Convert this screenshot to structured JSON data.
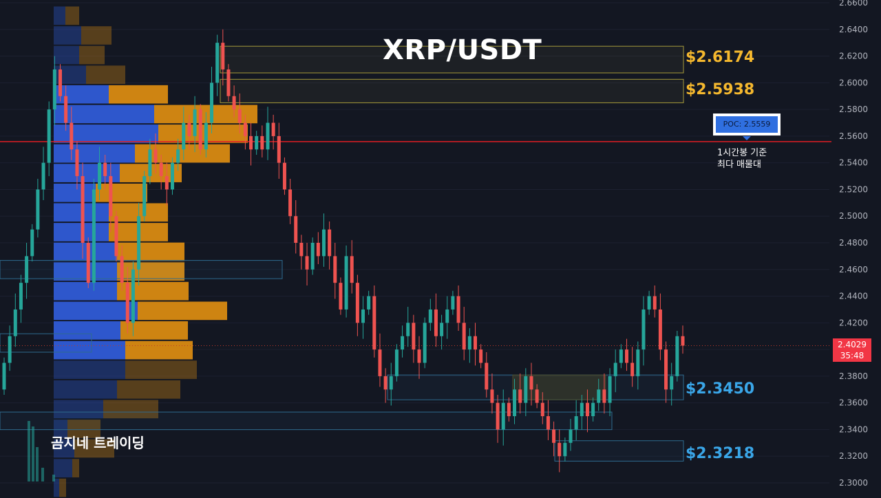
{
  "title": "XRP/USDT",
  "watermark": "곰지네 트레이딩",
  "poc": {
    "label": "POC: 2.5559",
    "value": 2.5559,
    "note_line1": "1시간봉 기준",
    "note_line2": "최다 매물대"
  },
  "current_price": {
    "value": 2.4029,
    "label": "2.4029",
    "countdown": "35:48"
  },
  "levels": [
    {
      "label": "$2.6174",
      "value": 2.6174,
      "color": "#f5b82e"
    },
    {
      "label": "$2.5938",
      "value": 2.5938,
      "color": "#f5b82e"
    },
    {
      "label": "$2.3450",
      "value": 2.345,
      "color": "#3aa6e8"
    },
    {
      "label": "$2.3218",
      "value": 2.3218,
      "color": "#3aa6e8"
    }
  ],
  "colors": {
    "background": "#131722",
    "up": "#26a69a",
    "down": "#ef5350",
    "vp_buy": "#2f5bd6",
    "vp_sell": "#d88a12",
    "poc_line": "#e31e24",
    "axis_text": "#b2b5be"
  },
  "chart_data": {
    "type": "candlestick",
    "title": "XRP/USDT",
    "timeframe_note": "1시간봉 기준",
    "y_axis": {
      "range": [
        2.295,
        2.66
      ],
      "ticks": [
        "2.6600",
        "2.6400",
        "2.6200",
        "2.6000",
        "2.5800",
        "2.5600",
        "2.5400",
        "2.5200",
        "2.5000",
        "2.4800",
        "2.4600",
        "2.4400",
        "2.4200",
        "2.4000",
        "2.3800",
        "2.3600",
        "2.3400",
        "2.3200",
        "2.3000"
      ]
    },
    "close_series": [
      2.39,
      2.41,
      2.43,
      2.45,
      2.47,
      2.49,
      2.52,
      2.54,
      2.58,
      2.61,
      2.59,
      2.57,
      2.55,
      2.53,
      2.48,
      2.45,
      2.52,
      2.54,
      2.53,
      2.5,
      2.47,
      2.45,
      2.42,
      2.46,
      2.5,
      2.53,
      2.55,
      2.54,
      2.53,
      2.52,
      2.54,
      2.55,
      2.57,
      2.56,
      2.58,
      2.55,
      2.57,
      2.6,
      2.63,
      2.61,
      2.59,
      2.58,
      2.57,
      2.56,
      2.55,
      2.56,
      2.55,
      2.57,
      2.56,
      2.54,
      2.52,
      2.5,
      2.48,
      2.47,
      2.46,
      2.48,
      2.47,
      2.49,
      2.47,
      2.45,
      2.43,
      2.47,
      2.45,
      2.42,
      2.43,
      2.44,
      2.4,
      2.38,
      2.37,
      2.38,
      2.4,
      2.41,
      2.42,
      2.4,
      2.39,
      2.42,
      2.43,
      2.41,
      2.42,
      2.43,
      2.44,
      2.42,
      2.4,
      2.41,
      2.4,
      2.39,
      2.37,
      2.36,
      2.34,
      2.36,
      2.35,
      2.37,
      2.36,
      2.38,
      2.37,
      2.36,
      2.35,
      2.34,
      2.33,
      2.32,
      2.33,
      2.34,
      2.35,
      2.36,
      2.35,
      2.36,
      2.37,
      2.36,
      2.38,
      2.39,
      2.4,
      2.39,
      2.38,
      2.4,
      2.43,
      2.44,
      2.43,
      2.4,
      2.37,
      2.38,
      2.41,
      2.4029
    ],
    "volume_profile": {
      "price_levels": [
        2.6503,
        2.6355,
        2.6208,
        2.606,
        2.5913,
        2.5765,
        2.5618,
        2.547,
        2.5323,
        2.5175,
        2.5028,
        2.488,
        2.4733,
        2.4585,
        2.4438,
        2.429,
        2.4143,
        2.3995,
        2.3848,
        2.37,
        2.3553,
        2.3405,
        2.3258,
        2.311,
        2.2963
      ],
      "buy_volume": [
        17,
        40,
        37,
        47,
        80,
        146,
        152,
        118,
        96,
        61,
        80,
        80,
        92,
        92,
        92,
        122,
        97,
        104,
        104,
        92,
        72,
        20,
        30,
        27,
        8
      ],
      "sell_volume": [
        20,
        44,
        37,
        57,
        86,
        150,
        130,
        138,
        90,
        75,
        86,
        86,
        98,
        98,
        104,
        130,
        98,
        98,
        104,
        92,
        80,
        48,
        58,
        10,
        10
      ]
    },
    "poc": 2.5559,
    "zones": [
      {
        "top": 2.6274,
        "bottom": 2.6074
      },
      {
        "top": 2.6026,
        "bottom": 2.585
      },
      {
        "top": 2.4668,
        "bottom": 2.4531
      },
      {
        "top": 2.3809,
        "bottom": 2.3623
      },
      {
        "top": 2.3531,
        "bottom": 2.3399
      },
      {
        "top": 2.3316,
        "bottom": 2.3163
      }
    ]
  }
}
